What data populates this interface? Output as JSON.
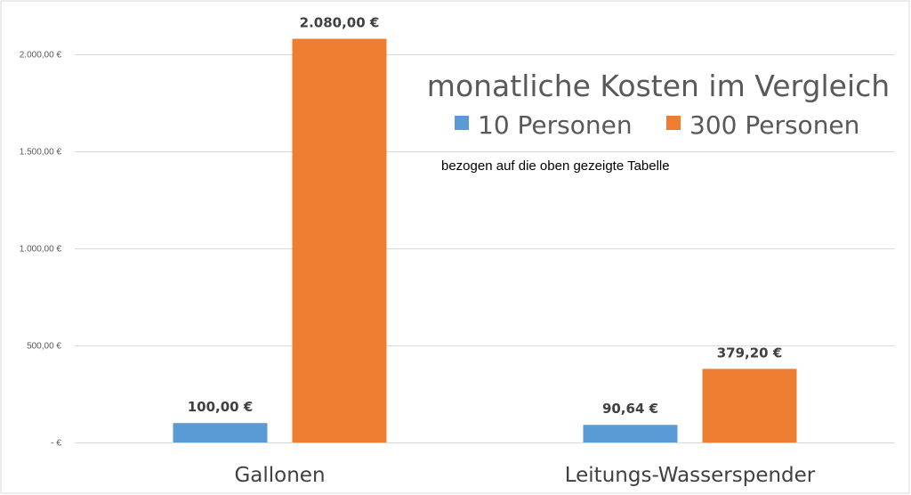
{
  "chart_data": {
    "type": "bar",
    "title": "monatliche Kosten im Vergleich",
    "subtitle": "bezogen auf die oben gezeigte Tabelle",
    "categories": [
      "Gallonen",
      "Leitungs-Wasserspender"
    ],
    "series": [
      {
        "name": "10 Personen",
        "values": [
          100.0,
          90.64
        ],
        "labels": [
          "100,00 €",
          "90,64 €"
        ],
        "color": "#5b9bd5"
      },
      {
        "name": "300 Personen",
        "values": [
          2080.0,
          379.2
        ],
        "labels": [
          "2.080,00 €",
          "379,20 €"
        ],
        "color": "#ed7d31"
      }
    ],
    "ylim": [
      0,
      2000
    ],
    "y_ticks": [
      0,
      500,
      1000,
      1500,
      2000
    ],
    "y_tick_labels": [
      "-   €",
      "500,00 €",
      "1.000,00 €",
      "1.500,00 €",
      "2.000,00 €"
    ],
    "legend_position": "top-right",
    "grid": true,
    "grid_color": "#d9d9d9"
  }
}
